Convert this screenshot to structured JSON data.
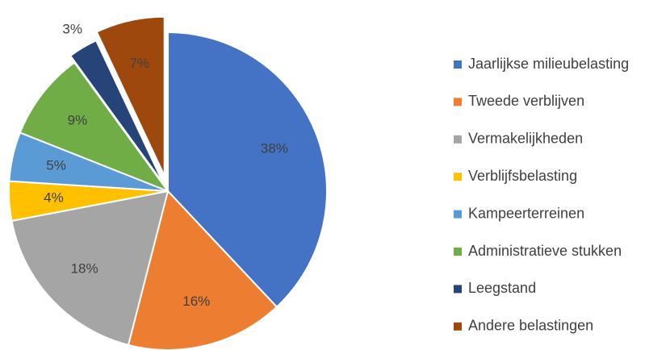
{
  "chart_data": {
    "type": "pie",
    "categories": [
      "Jaarlijkse milieubelasting",
      "Tweede verblijven",
      "Vermakelijkheden",
      "Verblijfsbelasting",
      "Kampeerterreinen",
      "Administratieve stukken",
      "Leegstand",
      "Andere belastingen"
    ],
    "values": [
      38,
      16,
      18,
      4,
      5,
      9,
      3,
      7
    ],
    "value_labels": [
      "38%",
      "16%",
      "18%",
      "4%",
      "5%",
      "9%",
      "3%",
      "7%"
    ],
    "colors": [
      "#4472c4",
      "#ed7d31",
      "#a5a5a5",
      "#ffc000",
      "#5b9bd5",
      "#70ad47",
      "#264478",
      "#9e480e"
    ],
    "explode": [
      0,
      0,
      0,
      0,
      0,
      0,
      0.05,
      0.1
    ],
    "legend": "right"
  }
}
